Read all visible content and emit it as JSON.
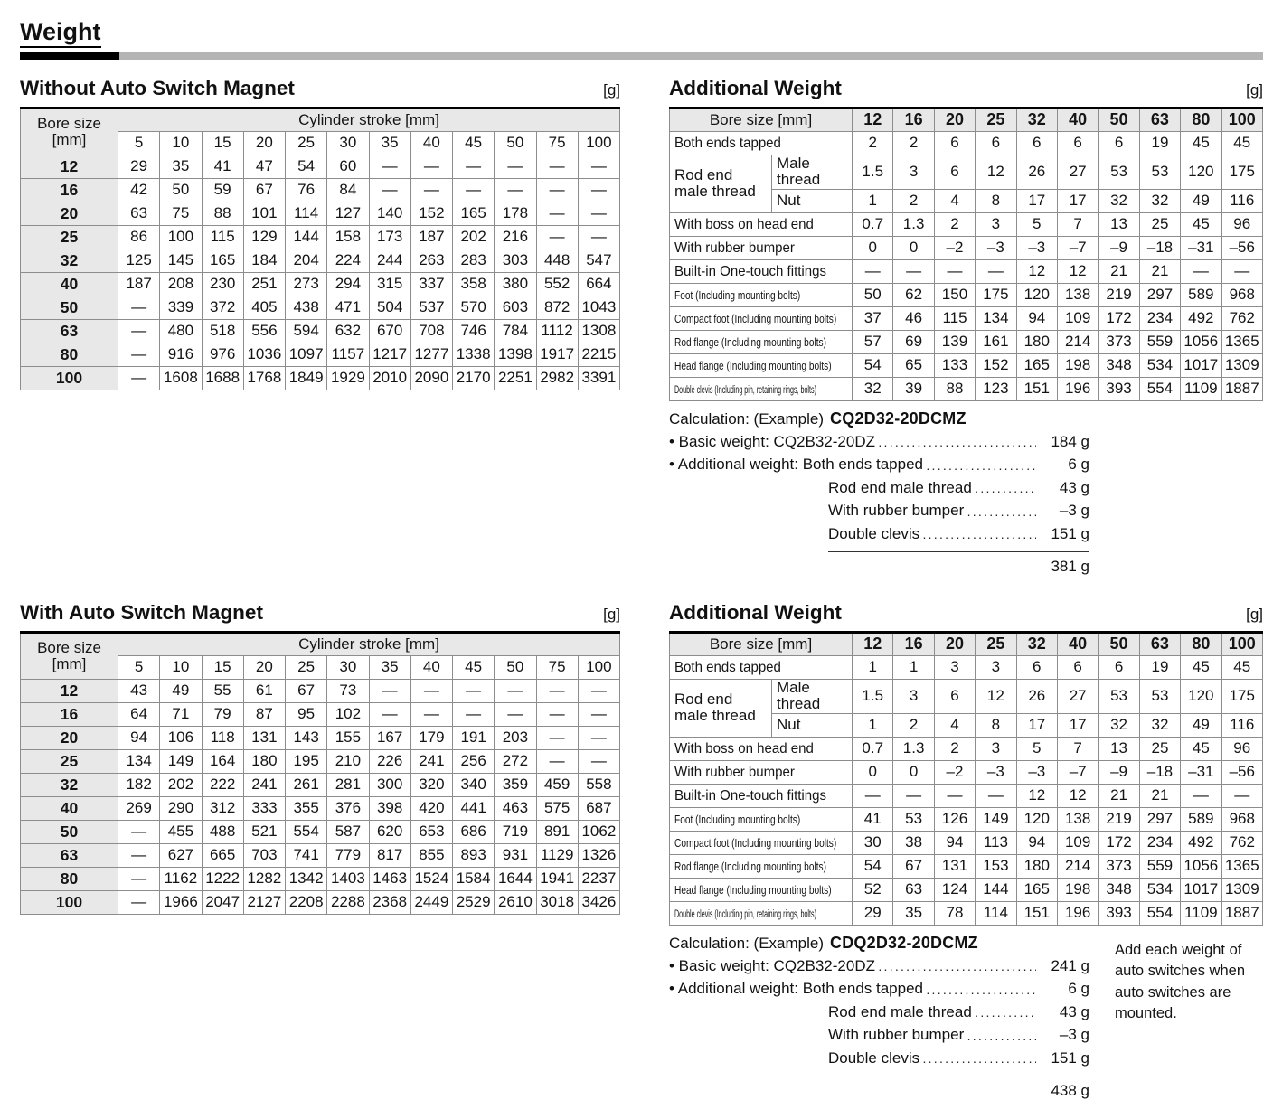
{
  "page_title": "Weight",
  "unit_label": "[g]",
  "stroke_header": {
    "col1": "Bore size\n[mm]",
    "span": "Cylinder stroke [mm]",
    "strokes": [
      "5",
      "10",
      "15",
      "20",
      "25",
      "30",
      "35",
      "40",
      "45",
      "50",
      "75",
      "100"
    ]
  },
  "without_magnet": {
    "title": "Without Auto Switch Magnet",
    "rows": [
      {
        "bore": "12",
        "values": [
          "29",
          "35",
          "41",
          "47",
          "54",
          "60",
          "—",
          "—",
          "—",
          "—",
          "—",
          "—"
        ]
      },
      {
        "bore": "16",
        "values": [
          "42",
          "50",
          "59",
          "67",
          "76",
          "84",
          "—",
          "—",
          "—",
          "—",
          "—",
          "—"
        ]
      },
      {
        "bore": "20",
        "values": [
          "63",
          "75",
          "88",
          "101",
          "114",
          "127",
          "140",
          "152",
          "165",
          "178",
          "—",
          "—"
        ]
      },
      {
        "bore": "25",
        "values": [
          "86",
          "100",
          "115",
          "129",
          "144",
          "158",
          "173",
          "187",
          "202",
          "216",
          "—",
          "—"
        ]
      },
      {
        "bore": "32",
        "values": [
          "125",
          "145",
          "165",
          "184",
          "204",
          "224",
          "244",
          "263",
          "283",
          "303",
          "448",
          "547"
        ]
      },
      {
        "bore": "40",
        "values": [
          "187",
          "208",
          "230",
          "251",
          "273",
          "294",
          "315",
          "337",
          "358",
          "380",
          "552",
          "664"
        ]
      },
      {
        "bore": "50",
        "values": [
          "—",
          "339",
          "372",
          "405",
          "438",
          "471",
          "504",
          "537",
          "570",
          "603",
          "872",
          "1043"
        ]
      },
      {
        "bore": "63",
        "values": [
          "—",
          "480",
          "518",
          "556",
          "594",
          "632",
          "670",
          "708",
          "746",
          "784",
          "1112",
          "1308"
        ]
      },
      {
        "bore": "80",
        "values": [
          "—",
          "916",
          "976",
          "1036",
          "1097",
          "1157",
          "1217",
          "1277",
          "1338",
          "1398",
          "1917",
          "2215"
        ]
      },
      {
        "bore": "100",
        "values": [
          "—",
          "1608",
          "1688",
          "1768",
          "1849",
          "1929",
          "2010",
          "2090",
          "2170",
          "2251",
          "2982",
          "3391"
        ]
      }
    ]
  },
  "with_magnet": {
    "title": "With Auto Switch Magnet",
    "rows": [
      {
        "bore": "12",
        "values": [
          "43",
          "49",
          "55",
          "61",
          "67",
          "73",
          "—",
          "—",
          "—",
          "—",
          "—",
          "—"
        ]
      },
      {
        "bore": "16",
        "values": [
          "64",
          "71",
          "79",
          "87",
          "95",
          "102",
          "—",
          "—",
          "—",
          "—",
          "—",
          "—"
        ]
      },
      {
        "bore": "20",
        "values": [
          "94",
          "106",
          "118",
          "131",
          "143",
          "155",
          "167",
          "179",
          "191",
          "203",
          "—",
          "—"
        ]
      },
      {
        "bore": "25",
        "values": [
          "134",
          "149",
          "164",
          "180",
          "195",
          "210",
          "226",
          "241",
          "256",
          "272",
          "—",
          "—"
        ]
      },
      {
        "bore": "32",
        "values": [
          "182",
          "202",
          "222",
          "241",
          "261",
          "281",
          "300",
          "320",
          "340",
          "359",
          "459",
          "558"
        ]
      },
      {
        "bore": "40",
        "values": [
          "269",
          "290",
          "312",
          "333",
          "355",
          "376",
          "398",
          "420",
          "441",
          "463",
          "575",
          "687"
        ]
      },
      {
        "bore": "50",
        "values": [
          "—",
          "455",
          "488",
          "521",
          "554",
          "587",
          "620",
          "653",
          "686",
          "719",
          "891",
          "1062"
        ]
      },
      {
        "bore": "63",
        "values": [
          "—",
          "627",
          "665",
          "703",
          "741",
          "779",
          "817",
          "855",
          "893",
          "931",
          "1129",
          "1326"
        ]
      },
      {
        "bore": "80",
        "values": [
          "—",
          "1162",
          "1222",
          "1282",
          "1342",
          "1403",
          "1463",
          "1524",
          "1584",
          "1644",
          "1941",
          "2237"
        ]
      },
      {
        "bore": "100",
        "values": [
          "—",
          "1966",
          "2047",
          "2127",
          "2208",
          "2288",
          "2368",
          "2449",
          "2529",
          "2610",
          "3018",
          "3426"
        ]
      }
    ]
  },
  "additional_top": {
    "title": "Additional Weight",
    "header_label": "Bore size [mm]",
    "bores": [
      "12",
      "16",
      "20",
      "25",
      "32",
      "40",
      "50",
      "63",
      "80",
      "100"
    ],
    "rows": [
      {
        "label": "Both ends tapped",
        "values": [
          "2",
          "2",
          "6",
          "6",
          "6",
          "6",
          "6",
          "19",
          "45",
          "45"
        ]
      },
      {
        "group": "Rod end\nmale thread",
        "sub": "Male thread",
        "values": [
          "1.5",
          "3",
          "6",
          "12",
          "26",
          "27",
          "53",
          "53",
          "120",
          "175"
        ]
      },
      {
        "sub": "Nut",
        "values": [
          "1",
          "2",
          "4",
          "8",
          "17",
          "17",
          "32",
          "32",
          "49",
          "116"
        ]
      },
      {
        "label": "With boss on head end",
        "values": [
          "0.7",
          "1.3",
          "2",
          "3",
          "5",
          "7",
          "13",
          "25",
          "45",
          "96"
        ]
      },
      {
        "label": "With rubber bumper",
        "values": [
          "0",
          "0",
          "–2",
          "–3",
          "–3",
          "–7",
          "–9",
          "–18",
          "–31",
          "–56"
        ]
      },
      {
        "label": "Built-in One-touch fittings",
        "values": [
          "—",
          "—",
          "—",
          "—",
          "12",
          "12",
          "21",
          "21",
          "—",
          "—"
        ]
      },
      {
        "label": "Foot (Including mounting bolts)",
        "size": "sm",
        "values": [
          "50",
          "62",
          "150",
          "175",
          "120",
          "138",
          "219",
          "297",
          "589",
          "968"
        ]
      },
      {
        "label": "Compact foot (Including mounting bolts)",
        "size": "sm",
        "values": [
          "37",
          "46",
          "115",
          "134",
          "94",
          "109",
          "172",
          "234",
          "492",
          "762"
        ]
      },
      {
        "label": "Rod flange (Including mounting bolts)",
        "size": "sm",
        "values": [
          "57",
          "69",
          "139",
          "161",
          "180",
          "214",
          "373",
          "559",
          "1056",
          "1365"
        ]
      },
      {
        "label": "Head flange (Including mounting bolts)",
        "size": "sm",
        "values": [
          "54",
          "65",
          "133",
          "152",
          "165",
          "198",
          "348",
          "534",
          "1017",
          "1309"
        ]
      },
      {
        "label": "Double clevis (Including pin, retaining rings, bolts)",
        "size": "xs",
        "values": [
          "32",
          "39",
          "88",
          "123",
          "151",
          "196",
          "393",
          "554",
          "1109",
          "1887"
        ]
      }
    ]
  },
  "additional_bottom": {
    "title": "Additional Weight",
    "header_label": "Bore size [mm]",
    "bores": [
      "12",
      "16",
      "20",
      "25",
      "32",
      "40",
      "50",
      "63",
      "80",
      "100"
    ],
    "rows": [
      {
        "label": "Both ends tapped",
        "values": [
          "1",
          "1",
          "3",
          "3",
          "6",
          "6",
          "6",
          "19",
          "45",
          "45"
        ]
      },
      {
        "group": "Rod end\nmale thread",
        "sub": "Male thread",
        "values": [
          "1.5",
          "3",
          "6",
          "12",
          "26",
          "27",
          "53",
          "53",
          "120",
          "175"
        ]
      },
      {
        "sub": "Nut",
        "values": [
          "1",
          "2",
          "4",
          "8",
          "17",
          "17",
          "32",
          "32",
          "49",
          "116"
        ]
      },
      {
        "label": "With boss on head end",
        "values": [
          "0.7",
          "1.3",
          "2",
          "3",
          "5",
          "7",
          "13",
          "25",
          "45",
          "96"
        ]
      },
      {
        "label": "With rubber bumper",
        "values": [
          "0",
          "0",
          "–2",
          "–3",
          "–3",
          "–7",
          "–9",
          "–18",
          "–31",
          "–56"
        ]
      },
      {
        "label": "Built-in One-touch fittings",
        "values": [
          "—",
          "—",
          "—",
          "—",
          "12",
          "12",
          "21",
          "21",
          "—",
          "—"
        ]
      },
      {
        "label": "Foot (Including mounting bolts)",
        "size": "sm",
        "values": [
          "41",
          "53",
          "126",
          "149",
          "120",
          "138",
          "219",
          "297",
          "589",
          "968"
        ]
      },
      {
        "label": "Compact foot (Including mounting bolts)",
        "size": "sm",
        "values": [
          "30",
          "38",
          "94",
          "113",
          "94",
          "109",
          "172",
          "234",
          "492",
          "762"
        ]
      },
      {
        "label": "Rod flange (Including mounting bolts)",
        "size": "sm",
        "values": [
          "54",
          "67",
          "131",
          "153",
          "180",
          "214",
          "373",
          "559",
          "1056",
          "1365"
        ]
      },
      {
        "label": "Head flange (Including mounting bolts)",
        "size": "sm",
        "values": [
          "52",
          "63",
          "124",
          "144",
          "165",
          "198",
          "348",
          "534",
          "1017",
          "1309"
        ]
      },
      {
        "label": "Double clevis (Including pin, retaining rings, bolts)",
        "size": "xs",
        "values": [
          "29",
          "35",
          "78",
          "114",
          "151",
          "196",
          "393",
          "554",
          "1109",
          "1887"
        ]
      }
    ]
  },
  "calc_top": {
    "prefix": "Calculation: (Example)",
    "model": "CQ2D32-20DCMZ",
    "lines": [
      {
        "label": "• Basic weight: CQ2B32-20DZ",
        "value": "184 g"
      },
      {
        "label": "• Additional weight: Both ends tapped",
        "value": "6 g"
      },
      {
        "label": "Rod end male thread",
        "value": "43 g",
        "indent": true
      },
      {
        "label": "With rubber bumper",
        "value": "–3 g",
        "indent": true
      },
      {
        "label": "Double clevis",
        "value": "151 g",
        "indent": true
      }
    ],
    "total": "381 g"
  },
  "calc_bottom": {
    "prefix": "Calculation: (Example)",
    "model": "CDQ2D32-20DCMZ",
    "lines": [
      {
        "label": "• Basic weight: CQ2B32-20DZ",
        "value": "241 g"
      },
      {
        "label": "• Additional weight: Both ends tapped",
        "value": "6 g"
      },
      {
        "label": "Rod end male thread",
        "value": "43 g",
        "indent": true
      },
      {
        "label": "With rubber bumper",
        "value": "–3 g",
        "indent": true
      },
      {
        "label": "Double clevis",
        "value": "151 g",
        "indent": true
      }
    ],
    "total": "438 g"
  },
  "note": "Add each weight of auto switches when auto switches are mounted."
}
